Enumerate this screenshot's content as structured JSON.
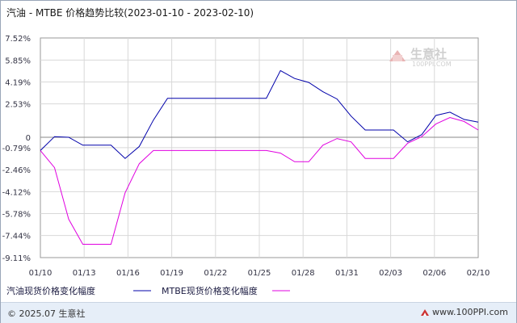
{
  "chart_data": {
    "type": "line",
    "title": "汽油 - MTBE 价格趋势比较(2023-01-10 - 2023-02-10)",
    "x_tick_labels": [
      "01/10",
      "01/13",
      "01/16",
      "01/19",
      "01/22",
      "01/25",
      "01/28",
      "01/31",
      "02/03",
      "02/06",
      "02/10"
    ],
    "y_tick_labels": [
      "7.52%",
      "5.85%",
      "4.19%",
      "2.53%",
      "0",
      "-0.79%",
      "-2.46%",
      "-4.12%",
      "-5.78%",
      "-7.44%",
      "-9.11%"
    ],
    "y_tick_values": [
      7.52,
      5.85,
      4.19,
      2.53,
      0,
      -0.79,
      -2.46,
      -4.12,
      -5.78,
      -7.44,
      -9.11
    ],
    "ylim": [
      -9.11,
      7.52
    ],
    "x_index_range": [
      0,
      31
    ],
    "grid": true,
    "legend_position": "bottom-left",
    "series": [
      {
        "name": "汽油现货价格变化幅度",
        "color": "#0000aa",
        "x": [
          0,
          1,
          2,
          3,
          4,
          5,
          6,
          7,
          8,
          9,
          10,
          11,
          12,
          13,
          14,
          15,
          16,
          17,
          18,
          19,
          20,
          21,
          22,
          23,
          24,
          25,
          26,
          27,
          28,
          29,
          30,
          31
        ],
        "y": [
          -1.0,
          0.05,
          0.0,
          -0.6,
          -0.6,
          -0.6,
          -1.6,
          -0.7,
          1.3,
          2.95,
          2.95,
          2.95,
          2.95,
          2.95,
          2.95,
          2.95,
          2.95,
          5.05,
          4.45,
          4.15,
          3.45,
          2.9,
          1.6,
          0.55,
          0.55,
          0.55,
          -0.35,
          0.2,
          1.65,
          1.9,
          1.35,
          1.15
        ]
      },
      {
        "name": "MTBE现货价格变化幅度",
        "color": "#e000e0",
        "x": [
          0,
          1,
          2,
          3,
          4,
          5,
          6,
          7,
          8,
          9,
          10,
          11,
          12,
          13,
          14,
          15,
          16,
          17,
          18,
          19,
          20,
          21,
          22,
          23,
          24,
          25,
          26,
          27,
          28,
          29,
          30,
          31
        ],
        "y": [
          -1.0,
          -2.3,
          -6.2,
          -8.1,
          -8.1,
          -8.1,
          -4.2,
          -2.0,
          -1.0,
          -1.0,
          -1.0,
          -1.0,
          -1.0,
          -1.0,
          -1.0,
          -1.0,
          -1.0,
          -1.2,
          -1.85,
          -1.85,
          -0.6,
          -0.1,
          -0.35,
          -1.6,
          -1.6,
          -1.6,
          -0.45,
          0.05,
          1.0,
          1.5,
          1.2,
          0.55
        ]
      }
    ]
  },
  "legend": {
    "gasoline_label": "汽油现货价格变化幅度",
    "mtbe_label": "MTBE现货价格变化幅度"
  },
  "watermark": {
    "text": "生意社",
    "sub": "100PPI.COM"
  },
  "footer": {
    "left": "© 2025.07 生意社",
    "right": "www.100PPI.com"
  }
}
